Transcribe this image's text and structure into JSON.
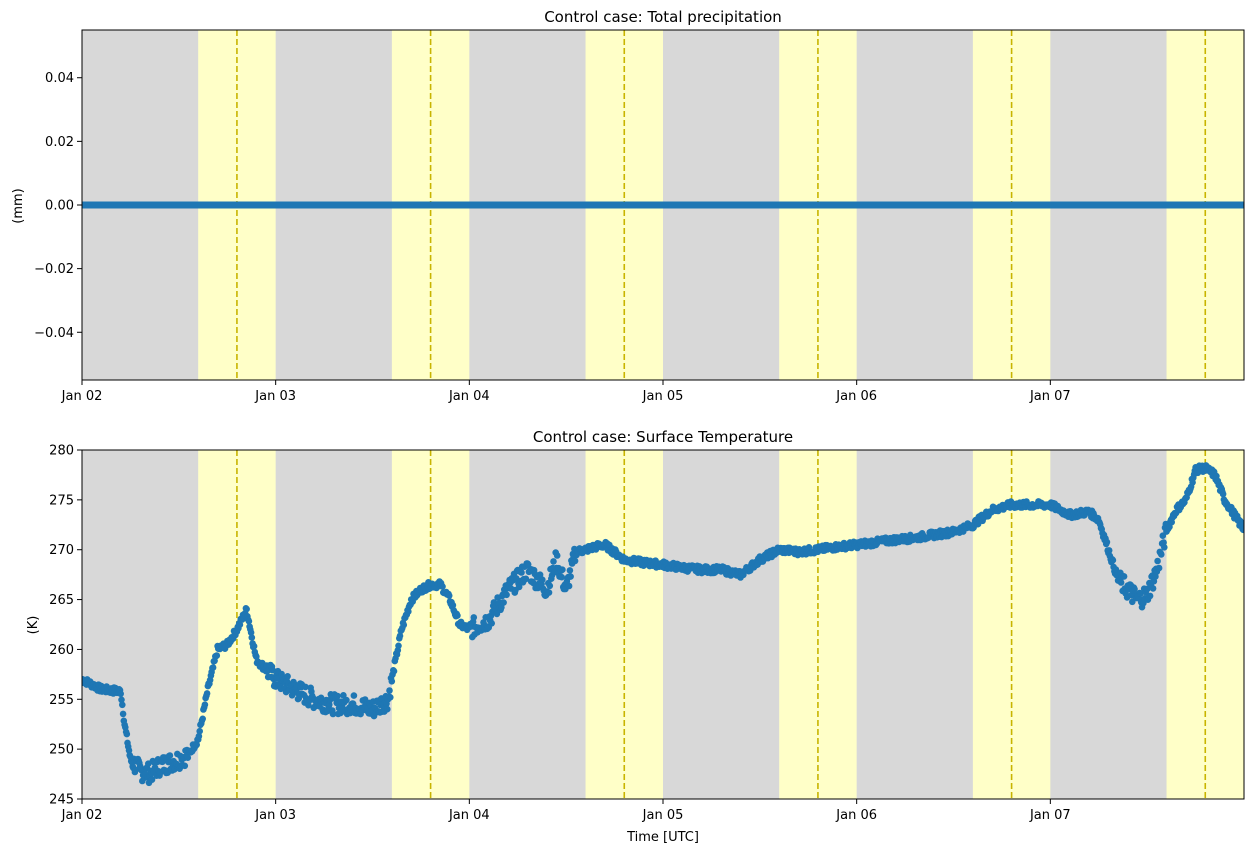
{
  "colors": {
    "night": "#d8d8d8",
    "day": "#ffffc8",
    "noon_line": "#c8b400",
    "series": "#1f77b4"
  },
  "chart_data": [
    {
      "type": "scatter",
      "title": "Control case: Total precipitation",
      "xlabel": "",
      "ylabel": "(mm)",
      "xlim_days": [
        0,
        6
      ],
      "xticks": [
        {
          "day": 0,
          "label": "Jan 02"
        },
        {
          "day": 1,
          "label": "Jan 03"
        },
        {
          "day": 2,
          "label": "Jan 04"
        },
        {
          "day": 3,
          "label": "Jan 05"
        },
        {
          "day": 4,
          "label": "Jan 06"
        },
        {
          "day": 5,
          "label": "Jan 07"
        }
      ],
      "ylim": [
        -0.055,
        0.055
      ],
      "yticks": [
        0.04,
        0.02,
        0.0,
        -0.02,
        -0.04
      ],
      "ytick_labels": [
        "0.04",
        "0.02",
        "0.00",
        "−0.02",
        "−0.04"
      ],
      "daylight_bands_days": [
        [
          0.6,
          1.0
        ],
        [
          1.6,
          2.0
        ],
        [
          2.6,
          3.0
        ],
        [
          3.6,
          4.0
        ],
        [
          4.6,
          5.0
        ],
        [
          5.6,
          6.0
        ]
      ],
      "noon_lines_days": [
        0.8,
        1.8,
        2.8,
        3.8,
        4.8,
        5.8
      ],
      "series": [
        {
          "name": "Total precipitation",
          "x_days": [
            0,
            6
          ],
          "values": [
            0.0,
            0.0
          ]
        }
      ]
    },
    {
      "type": "scatter",
      "title": "Control case: Surface Temperature",
      "xlabel": "Time [UTC]",
      "ylabel": "(K)",
      "xlim_days": [
        0,
        6
      ],
      "xticks": [
        {
          "day": 0,
          "label": "Jan 02"
        },
        {
          "day": 1,
          "label": "Jan 03"
        },
        {
          "day": 2,
          "label": "Jan 04"
        },
        {
          "day": 3,
          "label": "Jan 05"
        },
        {
          "day": 4,
          "label": "Jan 06"
        },
        {
          "day": 5,
          "label": "Jan 07"
        }
      ],
      "ylim": [
        245,
        280
      ],
      "yticks": [
        280,
        275,
        270,
        265,
        260,
        255,
        250,
        245
      ],
      "ytick_labels": [
        "280",
        "275",
        "270",
        "265",
        "260",
        "255",
        "250",
        "245"
      ],
      "daylight_bands_days": [
        [
          0.6,
          1.0
        ],
        [
          1.6,
          2.0
        ],
        [
          2.6,
          3.0
        ],
        [
          3.6,
          4.0
        ],
        [
          4.6,
          5.0
        ],
        [
          5.6,
          6.0
        ]
      ],
      "noon_lines_days": [
        0.8,
        1.8,
        2.8,
        3.8,
        4.8,
        5.8
      ],
      "series": [
        {
          "name": "Surface Temperature",
          "x_days": [
            0.0,
            0.1,
            0.2,
            0.22,
            0.25,
            0.3,
            0.35,
            0.4,
            0.5,
            0.55,
            0.6,
            0.65,
            0.7,
            0.75,
            0.8,
            0.85,
            0.9,
            0.95,
            1.0,
            1.1,
            1.2,
            1.3,
            1.4,
            1.5,
            1.58,
            1.65,
            1.7,
            1.75,
            1.8,
            1.85,
            1.9,
            1.95,
            2.0,
            2.05,
            2.1,
            2.2,
            2.3,
            2.4,
            2.45,
            2.5,
            2.55,
            2.6,
            2.65,
            2.7,
            2.8,
            2.9,
            3.0,
            3.1,
            3.2,
            3.3,
            3.4,
            3.5,
            3.55,
            3.6,
            3.7,
            3.8,
            3.9,
            4.0,
            4.2,
            4.3,
            4.4,
            4.5,
            4.6,
            4.7,
            4.8,
            4.9,
            5.0,
            5.1,
            5.2,
            5.25,
            5.3,
            5.35,
            5.4,
            5.45,
            5.5,
            5.55,
            5.6,
            5.65,
            5.7,
            5.75,
            5.8,
            5.85,
            5.9,
            5.95,
            6.0
          ],
          "values": [
            257.0,
            256.0,
            255.8,
            252.5,
            249.0,
            247.8,
            247.6,
            248.3,
            249.0,
            249.5,
            251.0,
            256.0,
            260.0,
            260.5,
            262.0,
            264.0,
            259.0,
            258.0,
            257.0,
            256.0,
            255.0,
            254.5,
            254.5,
            254.0,
            255.0,
            262.0,
            265.0,
            266.0,
            266.5,
            266.5,
            265.0,
            262.5,
            262.0,
            262.5,
            263.0,
            266.0,
            268.0,
            266.0,
            269.0,
            266.0,
            269.8,
            270.0,
            270.3,
            270.5,
            269.0,
            268.7,
            268.5,
            268.2,
            268.0,
            268.0,
            267.5,
            269.0,
            269.5,
            270.0,
            269.8,
            270.0,
            270.3,
            270.5,
            271.0,
            271.2,
            271.5,
            271.8,
            272.5,
            274.0,
            274.5,
            274.5,
            274.5,
            273.5,
            273.8,
            273.0,
            270.0,
            267.0,
            266.0,
            265.0,
            265.5,
            268.0,
            272.0,
            274.0,
            275.0,
            278.0,
            278.2,
            277.5,
            275.0,
            273.5,
            272.0
          ]
        }
      ]
    }
  ]
}
